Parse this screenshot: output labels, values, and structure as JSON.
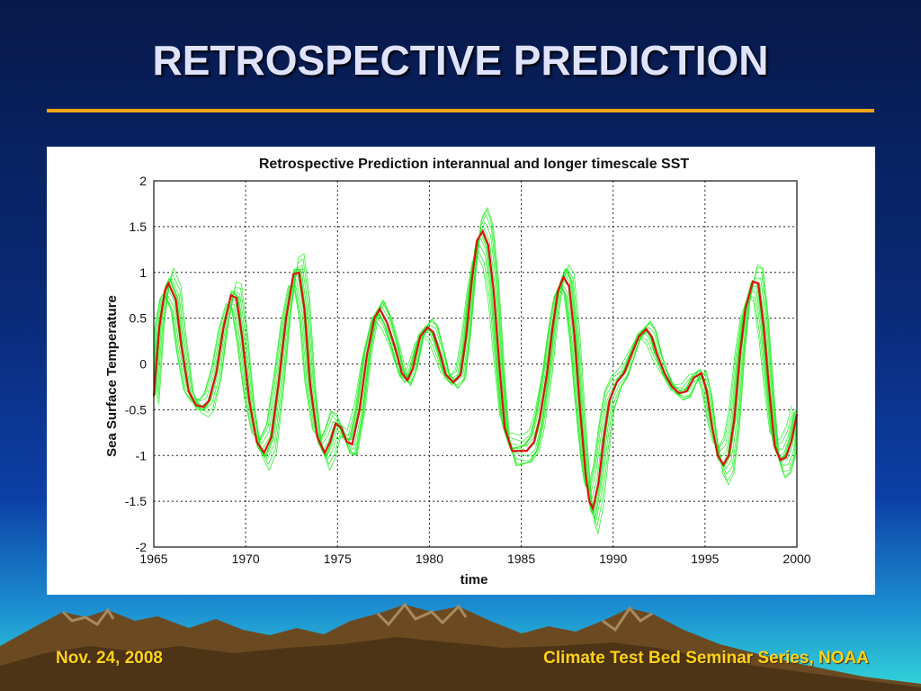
{
  "slide": {
    "title": "RETROSPECTIVE PREDICTION",
    "footer_left": "Nov. 24, 2008",
    "footer_right": "Climate Test Bed Seminar Series, NOAA"
  },
  "colors": {
    "background": "#0a2a78",
    "title_rule": "#f2a516",
    "footer_text": "#ffd21a",
    "observed": "#dd1111",
    "predictions": "#22ee22"
  },
  "chart_data": {
    "type": "line",
    "title": "Retrospective Prediction interannual and longer timescale SST",
    "xlabel": "time",
    "ylabel": "Sea Surface Temperature",
    "xlim": [
      1965,
      2000
    ],
    "ylim": [
      -2,
      2
    ],
    "xticks": [
      1965,
      1970,
      1975,
      1980,
      1985,
      1990,
      1995,
      2000
    ],
    "yticks": [
      -2,
      -1.5,
      -1,
      -0.5,
      0,
      0.5,
      1,
      1.5,
      2
    ],
    "grid": true,
    "series": [
      {
        "role": "observed",
        "color": "#dd1111",
        "x": [
          1965.0,
          1965.3,
          1965.6,
          1965.8,
          1966.2,
          1966.5,
          1966.9,
          1967.3,
          1967.7,
          1968.0,
          1968.4,
          1968.8,
          1969.2,
          1969.5,
          1969.8,
          1970.2,
          1970.6,
          1971.0,
          1971.4,
          1971.8,
          1972.2,
          1972.6,
          1972.9,
          1973.2,
          1973.5,
          1973.9,
          1974.3,
          1974.6,
          1974.9,
          1975.2,
          1975.5,
          1975.8,
          1976.2,
          1976.6,
          1977.0,
          1977.3,
          1977.7,
          1978.1,
          1978.5,
          1978.8,
          1979.1,
          1979.5,
          1979.9,
          1980.2,
          1980.6,
          1980.9,
          1981.3,
          1981.7,
          1982.0,
          1982.3,
          1982.6,
          1982.9,
          1983.2,
          1983.5,
          1983.8,
          1984.1,
          1984.5,
          1984.9,
          1985.3,
          1985.7,
          1986.0,
          1986.4,
          1986.7,
          1987.0,
          1987.3,
          1987.6,
          1987.9,
          1988.2,
          1988.5,
          1988.7,
          1988.9,
          1989.2,
          1989.5,
          1989.8,
          1990.2,
          1990.6,
          1991.0,
          1991.4,
          1991.8,
          1992.1,
          1992.4,
          1992.8,
          1993.2,
          1993.6,
          1994.0,
          1994.4,
          1994.8,
          1995.1,
          1995.4,
          1995.7,
          1996.0,
          1996.3,
          1996.6,
          1996.9,
          1997.2,
          1997.6,
          1997.9,
          1998.2,
          1998.5,
          1998.8,
          1999.1,
          1999.4,
          1999.7,
          2000.0
        ],
        "y": [
          -0.35,
          0.4,
          0.8,
          0.88,
          0.7,
          0.2,
          -0.3,
          -0.45,
          -0.47,
          -0.4,
          -0.1,
          0.4,
          0.75,
          0.72,
          0.3,
          -0.4,
          -0.85,
          -0.97,
          -0.8,
          -0.2,
          0.5,
          0.98,
          1.0,
          0.6,
          -0.2,
          -0.8,
          -0.97,
          -0.85,
          -0.65,
          -0.7,
          -0.85,
          -0.88,
          -0.5,
          0.1,
          0.5,
          0.6,
          0.45,
          0.2,
          -0.1,
          -0.18,
          -0.05,
          0.3,
          0.4,
          0.35,
          0.1,
          -0.12,
          -0.2,
          -0.12,
          0.3,
          0.9,
          1.35,
          1.45,
          1.3,
          0.8,
          0.0,
          -0.7,
          -0.95,
          -0.95,
          -0.95,
          -0.85,
          -0.6,
          -0.1,
          0.4,
          0.8,
          0.95,
          0.85,
          0.3,
          -0.5,
          -1.2,
          -1.5,
          -1.58,
          -1.3,
          -0.8,
          -0.4,
          -0.2,
          -0.1,
          0.1,
          0.3,
          0.38,
          0.3,
          0.1,
          -0.1,
          -0.25,
          -0.32,
          -0.3,
          -0.15,
          -0.1,
          -0.3,
          -0.7,
          -1.0,
          -1.1,
          -1.0,
          -0.6,
          0.1,
          0.6,
          0.9,
          0.88,
          0.4,
          -0.3,
          -0.9,
          -1.05,
          -1.02,
          -0.85,
          -0.55
        ]
      }
    ],
    "prediction_band_note": "Multiple green ensemble prediction lines surrounding the observed curve"
  }
}
